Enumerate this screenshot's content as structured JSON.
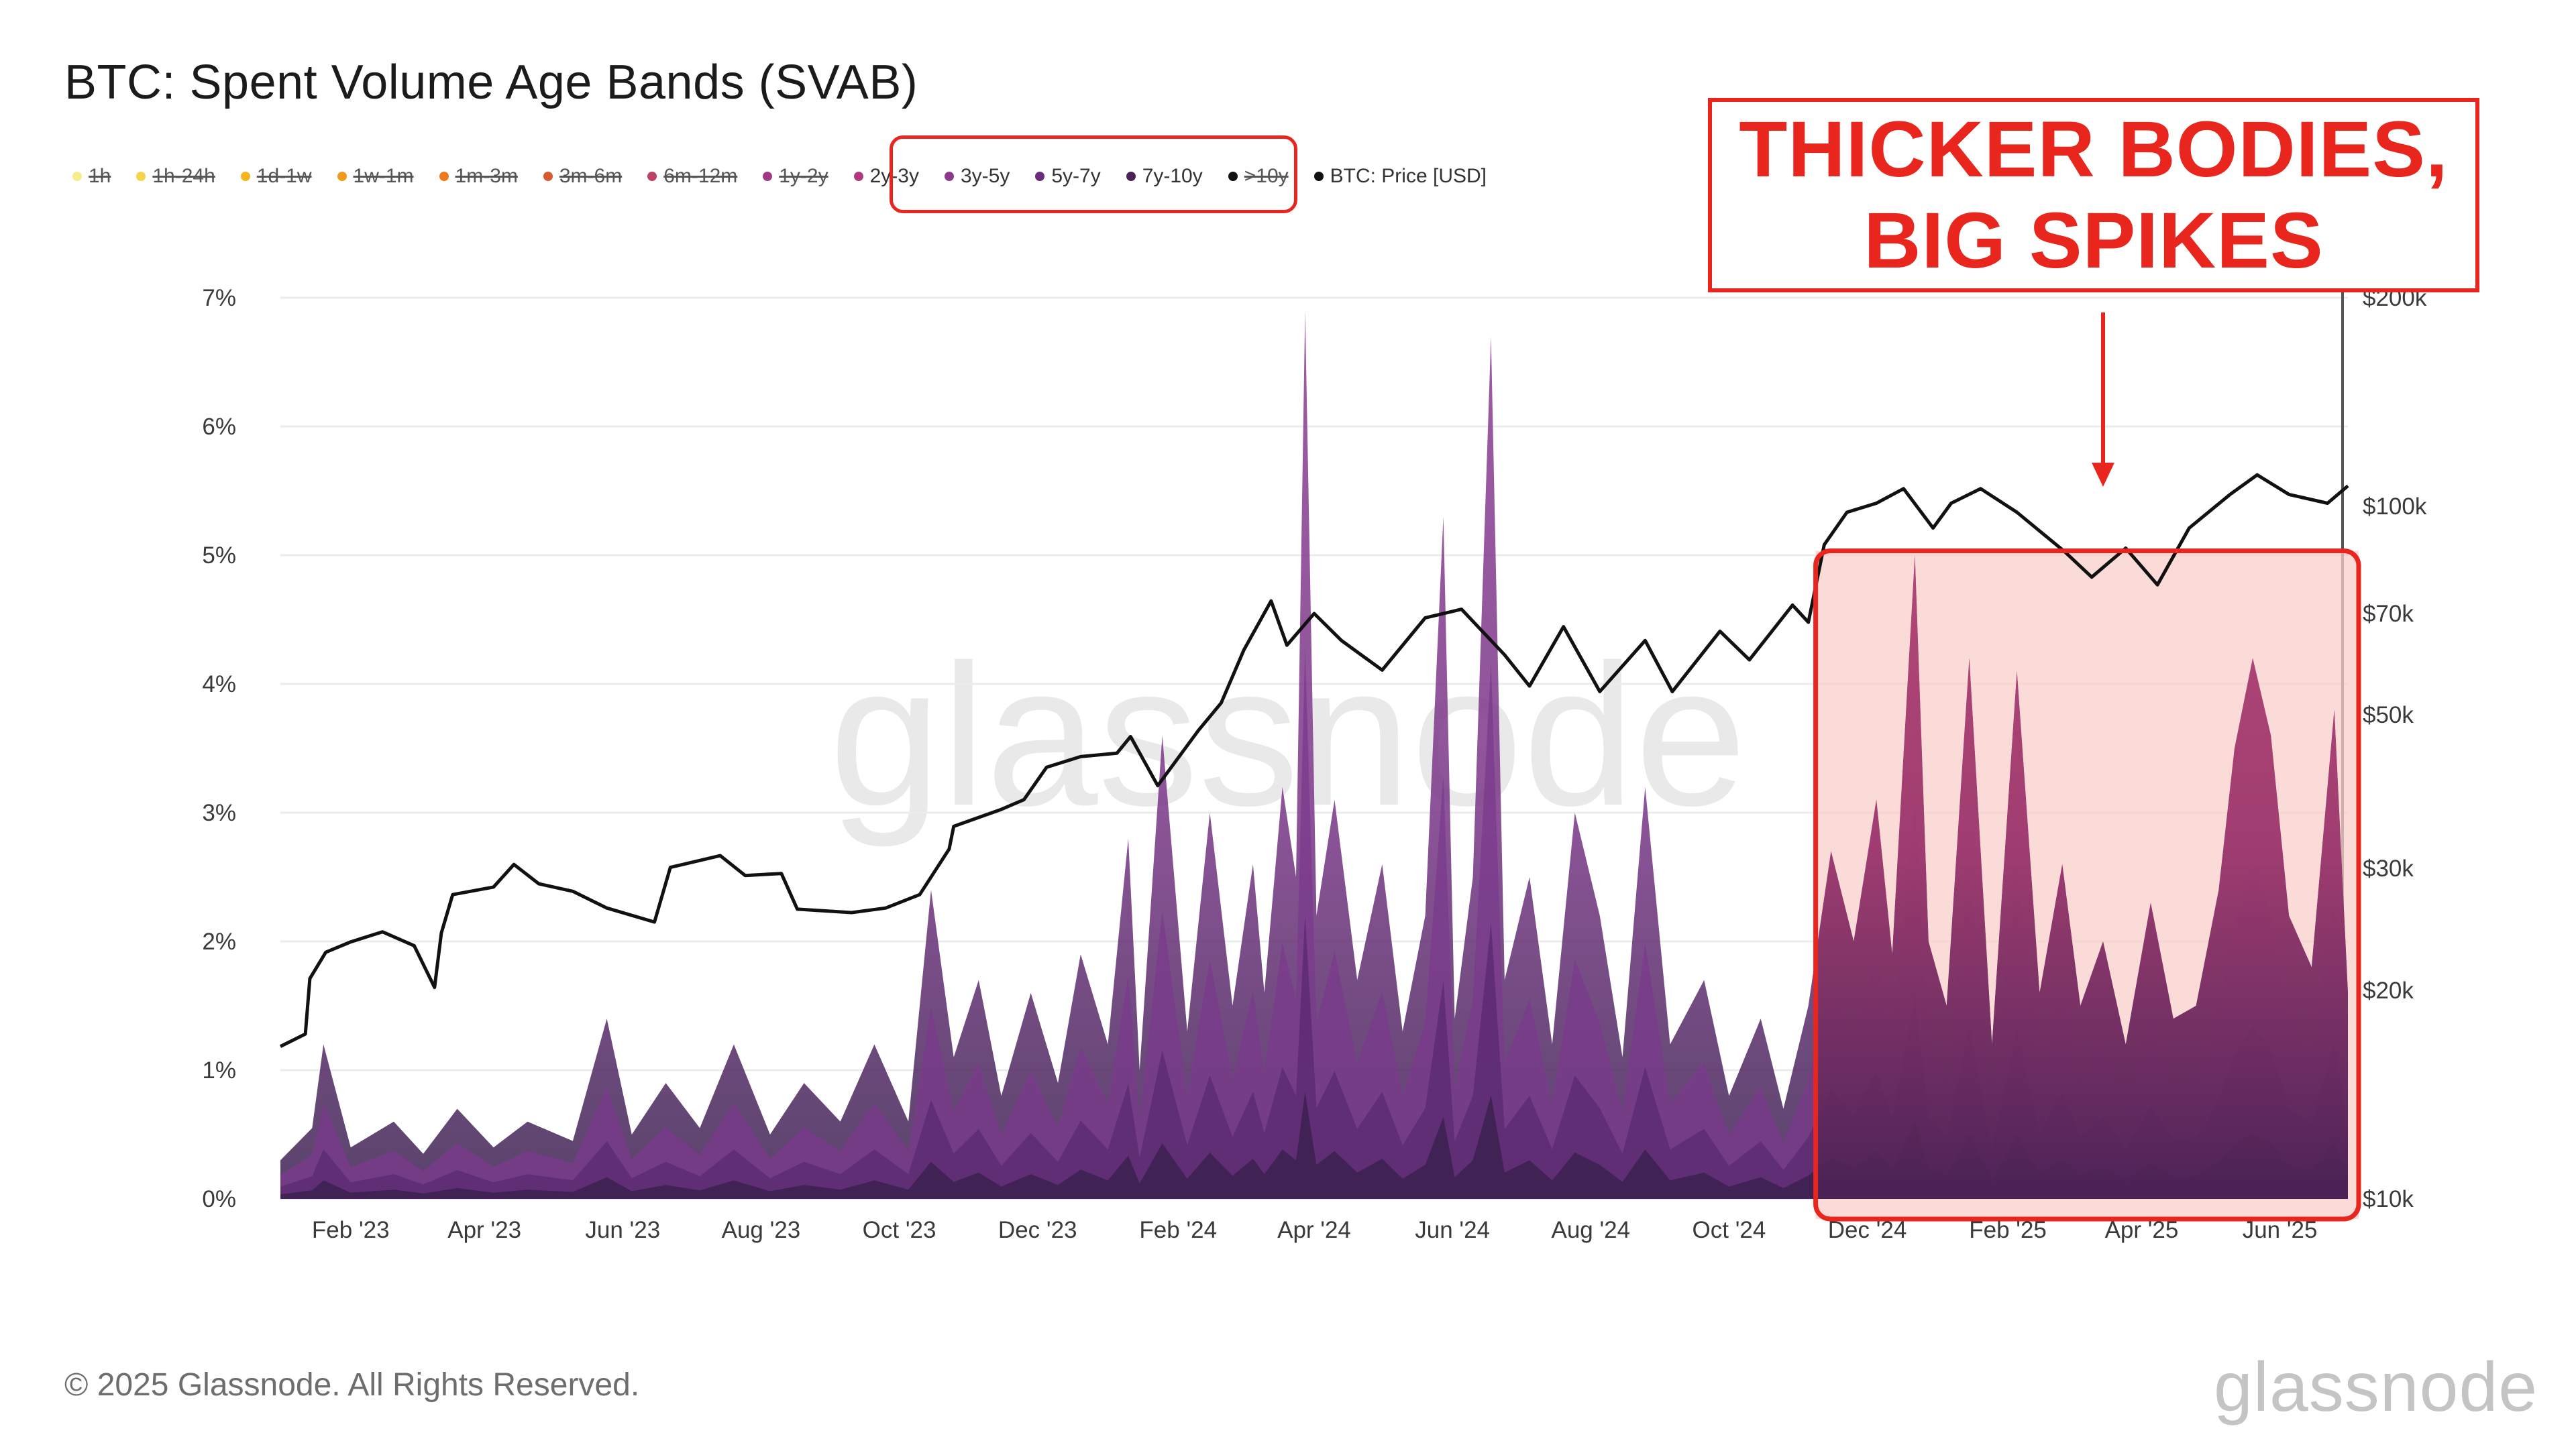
{
  "title": "BTC: Spent Volume Age Bands (SVAB)",
  "legend": [
    {
      "label": "1h",
      "color": "#f7ec8a",
      "active": false
    },
    {
      "label": "1h-24h",
      "color": "#f6d44a",
      "active": false
    },
    {
      "label": "1d-1w",
      "color": "#f4b521",
      "active": false
    },
    {
      "label": "1w-1m",
      "color": "#f39a1c",
      "active": false
    },
    {
      "label": "1m-3m",
      "color": "#ee7a1f",
      "active": false
    },
    {
      "label": "3m-6m",
      "color": "#d9592f",
      "active": false
    },
    {
      "label": "6m-12m",
      "color": "#bf4266",
      "active": false
    },
    {
      "label": "1y-2y",
      "color": "#a03a84",
      "active": false
    },
    {
      "label": "2y-3y",
      "color": "#b2397d",
      "active": true
    },
    {
      "label": "3y-5y",
      "color": "#8e3a8c",
      "active": true
    },
    {
      "label": "5y-7y",
      "color": "#6a2d7c",
      "active": true
    },
    {
      "label": "7y-10y",
      "color": "#4a2255",
      "active": true
    },
    {
      "label": ">10y",
      "color": "#111111",
      "active": false
    },
    {
      "label": "BTC: Price [USD]",
      "color": "#111111",
      "active": true
    }
  ],
  "callout": {
    "line1": "THICKER BODIES,",
    "line2": "BIG SPIKES"
  },
  "watermark": "glassnode",
  "copyright": "© 2025 Glassnode. All Rights Reserved.",
  "footer_logo": "glassnode",
  "colors": {
    "accent": "#e8261d",
    "highlight_fill": "#f8c9c3",
    "price_line": "#111111"
  },
  "chart_data": {
    "type": "area",
    "x_tick_labels": [
      "Feb '23",
      "Apr '23",
      "Jun '23",
      "Aug '23",
      "Oct '23",
      "Dec '23",
      "Feb '24",
      "Apr '24",
      "Jun '24",
      "Aug '24",
      "Oct '24",
      "Dec '24",
      "Feb '25",
      "Apr '25",
      "Jun '25"
    ],
    "x_range": [
      "2023-01-01",
      "2025-07-01"
    ],
    "y_left": {
      "ticks": [
        "0%",
        "1%",
        "2%",
        "3%",
        "4%",
        "5%",
        "6%",
        "7%"
      ],
      "range": [
        0,
        7
      ],
      "unit": "%"
    },
    "y_right": {
      "ticks": [
        "$10k",
        "$20k",
        "$30k",
        "$50k",
        "$70k",
        "$100k",
        "$200k"
      ],
      "values": [
        10000,
        20000,
        30000,
        50000,
        70000,
        100000,
        200000
      ],
      "scale": "log"
    },
    "highlight": {
      "start": "2024-11-10",
      "end": "2025-07-01"
    },
    "series": [
      {
        "name": "2y-3y, 3y-5y, 5y-7y, 7y-10y (stacked)",
        "color": "#8a3a8a",
        "points": [
          [
            "2023-01-01",
            0.3
          ],
          [
            "2023-01-15",
            0.55
          ],
          [
            "2023-01-20",
            1.2
          ],
          [
            "2023-02-01",
            0.4
          ],
          [
            "2023-02-20",
            0.6
          ],
          [
            "2023-03-05",
            0.35
          ],
          [
            "2023-03-20",
            0.7
          ],
          [
            "2023-04-05",
            0.4
          ],
          [
            "2023-04-20",
            0.6
          ],
          [
            "2023-05-10",
            0.45
          ],
          [
            "2023-05-25",
            1.4
          ],
          [
            "2023-06-05",
            0.5
          ],
          [
            "2023-06-20",
            0.9
          ],
          [
            "2023-07-05",
            0.55
          ],
          [
            "2023-07-20",
            1.2
          ],
          [
            "2023-08-05",
            0.5
          ],
          [
            "2023-08-20",
            0.9
          ],
          [
            "2023-09-05",
            0.6
          ],
          [
            "2023-09-20",
            1.2
          ],
          [
            "2023-10-05",
            0.6
          ],
          [
            "2023-10-15",
            2.4
          ],
          [
            "2023-10-25",
            1.1
          ],
          [
            "2023-11-05",
            1.7
          ],
          [
            "2023-11-15",
            0.8
          ],
          [
            "2023-11-28",
            1.6
          ],
          [
            "2023-12-10",
            0.9
          ],
          [
            "2023-12-20",
            1.9
          ],
          [
            "2024-01-01",
            1.2
          ],
          [
            "2024-01-10",
            2.8
          ],
          [
            "2024-01-15",
            1.0
          ],
          [
            "2024-01-25",
            3.6
          ],
          [
            "2024-02-05",
            1.3
          ],
          [
            "2024-02-15",
            3.0
          ],
          [
            "2024-02-25",
            1.5
          ],
          [
            "2024-03-05",
            2.6
          ],
          [
            "2024-03-10",
            1.6
          ],
          [
            "2024-03-18",
            3.2
          ],
          [
            "2024-03-24",
            2.5
          ],
          [
            "2024-03-28",
            6.9
          ],
          [
            "2024-04-02",
            2.2
          ],
          [
            "2024-04-10",
            3.1
          ],
          [
            "2024-04-20",
            1.7
          ],
          [
            "2024-05-01",
            2.6
          ],
          [
            "2024-05-10",
            1.3
          ],
          [
            "2024-05-20",
            2.2
          ],
          [
            "2024-05-28",
            5.3
          ],
          [
            "2024-06-02",
            1.4
          ],
          [
            "2024-06-10",
            2.5
          ],
          [
            "2024-06-18",
            6.7
          ],
          [
            "2024-06-24",
            1.7
          ],
          [
            "2024-07-05",
            2.5
          ],
          [
            "2024-07-15",
            1.2
          ],
          [
            "2024-07-25",
            3.0
          ],
          [
            "2024-08-05",
            2.2
          ],
          [
            "2024-08-15",
            1.1
          ],
          [
            "2024-08-25",
            3.2
          ],
          [
            "2024-09-05",
            1.2
          ],
          [
            "2024-09-20",
            1.7
          ],
          [
            "2024-10-01",
            0.8
          ],
          [
            "2024-10-15",
            1.4
          ],
          [
            "2024-10-25",
            0.7
          ],
          [
            "2024-11-05",
            1.5
          ],
          [
            "2024-11-15",
            2.7
          ],
          [
            "2024-11-25",
            2.0
          ],
          [
            "2024-12-05",
            3.1
          ],
          [
            "2024-12-12",
            1.9
          ],
          [
            "2024-12-22",
            5.0
          ],
          [
            "2024-12-28",
            2.0
          ],
          [
            "2025-01-05",
            1.5
          ],
          [
            "2025-01-15",
            4.2
          ],
          [
            "2025-01-25",
            1.2
          ],
          [
            "2025-02-05",
            4.1
          ],
          [
            "2025-02-15",
            1.6
          ],
          [
            "2025-02-25",
            2.6
          ],
          [
            "2025-03-05",
            1.5
          ],
          [
            "2025-03-15",
            2.0
          ],
          [
            "2025-03-25",
            1.2
          ],
          [
            "2025-04-05",
            2.3
          ],
          [
            "2025-04-15",
            1.4
          ],
          [
            "2025-04-25",
            1.5
          ],
          [
            "2025-05-05",
            2.4
          ],
          [
            "2025-05-12",
            3.5
          ],
          [
            "2025-05-20",
            4.2
          ],
          [
            "2025-05-28",
            3.6
          ],
          [
            "2025-06-05",
            2.2
          ],
          [
            "2025-06-15",
            1.8
          ],
          [
            "2025-06-25",
            3.8
          ],
          [
            "2025-07-01",
            1.6
          ]
        ]
      },
      {
        "name": "BTC: Price [USD]",
        "color": "#111111",
        "points": [
          [
            "2023-01-01",
            16600
          ],
          [
            "2023-01-12",
            17300
          ],
          [
            "2023-01-14",
            20800
          ],
          [
            "2023-01-21",
            22700
          ],
          [
            "2023-02-01",
            23500
          ],
          [
            "2023-02-15",
            24300
          ],
          [
            "2023-03-01",
            23200
          ],
          [
            "2023-03-10",
            20200
          ],
          [
            "2023-03-13",
            24200
          ],
          [
            "2023-03-18",
            27500
          ],
          [
            "2023-04-05",
            28200
          ],
          [
            "2023-04-14",
            30400
          ],
          [
            "2023-04-25",
            28500
          ],
          [
            "2023-05-10",
            27800
          ],
          [
            "2023-05-25",
            26300
          ],
          [
            "2023-06-15",
            25100
          ],
          [
            "2023-06-22",
            30100
          ],
          [
            "2023-07-14",
            31300
          ],
          [
            "2023-07-25",
            29300
          ],
          [
            "2023-08-10",
            29500
          ],
          [
            "2023-08-17",
            26200
          ],
          [
            "2023-09-10",
            25900
          ],
          [
            "2023-09-25",
            26300
          ],
          [
            "2023-10-10",
            27500
          ],
          [
            "2023-10-23",
            32000
          ],
          [
            "2023-10-25",
            34500
          ],
          [
            "2023-11-15",
            36500
          ],
          [
            "2023-11-25",
            37700
          ],
          [
            "2023-12-05",
            42000
          ],
          [
            "2023-12-20",
            43500
          ],
          [
            "2024-01-05",
            44000
          ],
          [
            "2024-01-11",
            46500
          ],
          [
            "2024-01-23",
            39500
          ],
          [
            "2024-02-10",
            47500
          ],
          [
            "2024-02-20",
            52000
          ],
          [
            "2024-03-01",
            62000
          ],
          [
            "2024-03-13",
            73000
          ],
          [
            "2024-03-20",
            63000
          ],
          [
            "2024-04-01",
            70000
          ],
          [
            "2024-04-13",
            64000
          ],
          [
            "2024-05-01",
            58000
          ],
          [
            "2024-05-20",
            69000
          ],
          [
            "2024-06-05",
            71000
          ],
          [
            "2024-06-24",
            61000
          ],
          [
            "2024-07-05",
            55000
          ],
          [
            "2024-07-20",
            67000
          ],
          [
            "2024-08-05",
            54000
          ],
          [
            "2024-08-25",
            64000
          ],
          [
            "2024-09-06",
            54000
          ],
          [
            "2024-09-27",
            66000
          ],
          [
            "2024-10-10",
            60000
          ],
          [
            "2024-10-29",
            72000
          ],
          [
            "2024-11-05",
            68000
          ],
          [
            "2024-11-12",
            88000
          ],
          [
            "2024-11-22",
            98000
          ],
          [
            "2024-12-05",
            101000
          ],
          [
            "2024-12-17",
            106000
          ],
          [
            "2024-12-30",
            93000
          ],
          [
            "2025-01-07",
            101000
          ],
          [
            "2025-01-20",
            106000
          ],
          [
            "2025-02-05",
            98000
          ],
          [
            "2025-02-26",
            86000
          ],
          [
            "2025-03-10",
            79000
          ],
          [
            "2025-03-25",
            87000
          ],
          [
            "2025-04-08",
            77000
          ],
          [
            "2025-04-22",
            93000
          ],
          [
            "2025-05-10",
            104000
          ],
          [
            "2025-05-22",
            111000
          ],
          [
            "2025-06-05",
            104000
          ],
          [
            "2025-06-22",
            101000
          ],
          [
            "2025-07-01",
            107000
          ]
        ]
      }
    ]
  }
}
